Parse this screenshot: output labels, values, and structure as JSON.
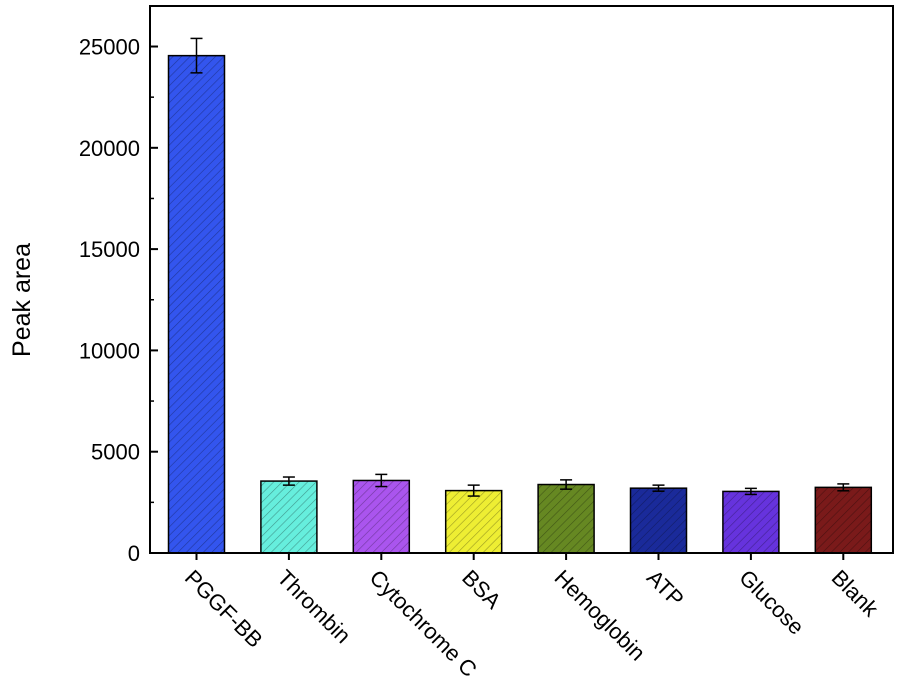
{
  "chart_data": {
    "type": "bar",
    "title": "",
    "xlabel": "",
    "ylabel": "Peak area",
    "ylim": [
      0,
      27000
    ],
    "yticks": [
      0,
      5000,
      10000,
      15000,
      20000,
      25000
    ],
    "ytick_labels": [
      "0",
      "5000",
      "10000",
      "15000",
      "20000",
      "25000"
    ],
    "grid": false,
    "categories": [
      "PGGF-BB",
      "Thrombin",
      "Cytochrome C",
      "BSA",
      "Hemoglobin",
      "ATP",
      "Glucose",
      "Blank"
    ],
    "values": [
      24550,
      3550,
      3580,
      3080,
      3380,
      3200,
      3040,
      3240
    ],
    "errors": [
      850,
      200,
      300,
      270,
      230,
      150,
      150,
      170
    ],
    "colors": [
      "#3355ee",
      "#66eedd",
      "#aa55ee",
      "#eeee33",
      "#668822",
      "#1a2a9a",
      "#6633dd",
      "#7a1a1a"
    ],
    "hatch": "diagonal"
  }
}
